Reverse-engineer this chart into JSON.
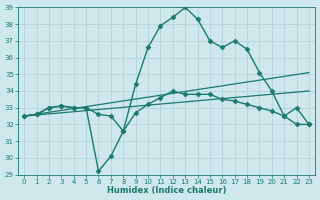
{
  "xlabel": "Humidex (Indice chaleur)",
  "background_color": "#cfe8eb",
  "grid_color": "#b0d0d4",
  "line_color": "#1a7a6e",
  "xlim": [
    -0.5,
    23.5
  ],
  "ylim": [
    29,
    39
  ],
  "yticks": [
    29,
    30,
    31,
    32,
    33,
    34,
    35,
    36,
    37,
    38,
    39
  ],
  "xticks": [
    0,
    1,
    2,
    3,
    4,
    5,
    6,
    7,
    8,
    9,
    10,
    11,
    12,
    13,
    14,
    15,
    16,
    17,
    18,
    19,
    20,
    21,
    22,
    23
  ],
  "series": [
    {
      "x": [
        0,
        1,
        2,
        3,
        4,
        5,
        6,
        7,
        8,
        9,
        10,
        11,
        12,
        13,
        14,
        15,
        16,
        17,
        18,
        19,
        20,
        21,
        22,
        23
      ],
      "y": [
        32.5,
        32.6,
        33.0,
        33.1,
        33.0,
        33.0,
        32.6,
        32.5,
        31.6,
        34.4,
        36.6,
        37.9,
        38.4,
        39.0,
        38.3,
        37.0,
        36.6,
        37.0,
        36.5,
        35.1,
        34.0,
        32.5,
        33.0,
        32.0
      ],
      "marker": "D",
      "markersize": 2.5,
      "linewidth": 1.0,
      "has_marker": true
    },
    {
      "x": [
        0,
        1,
        2,
        3,
        4,
        5,
        6,
        7,
        8,
        9,
        10,
        11,
        12,
        13,
        14,
        15,
        16,
        17,
        18,
        19,
        20,
        21,
        22,
        23
      ],
      "y": [
        32.5,
        32.6,
        33.0,
        33.1,
        33.0,
        33.0,
        29.2,
        30.1,
        31.6,
        32.7,
        33.2,
        33.6,
        34.0,
        33.8,
        33.8,
        33.8,
        33.5,
        33.4,
        33.2,
        33.0,
        32.8,
        32.5,
        32.0,
        32.0
      ],
      "marker": "D",
      "markersize": 2.5,
      "linewidth": 1.0,
      "has_marker": true
    },
    {
      "x": [
        0,
        23
      ],
      "y": [
        32.5,
        35.1
      ],
      "marker": null,
      "markersize": 0,
      "linewidth": 0.9,
      "has_marker": false
    },
    {
      "x": [
        0,
        23
      ],
      "y": [
        32.5,
        34.0
      ],
      "marker": null,
      "markersize": 0,
      "linewidth": 0.9,
      "has_marker": false
    }
  ],
  "xlabel_fontsize": 6,
  "tick_fontsize": 5
}
